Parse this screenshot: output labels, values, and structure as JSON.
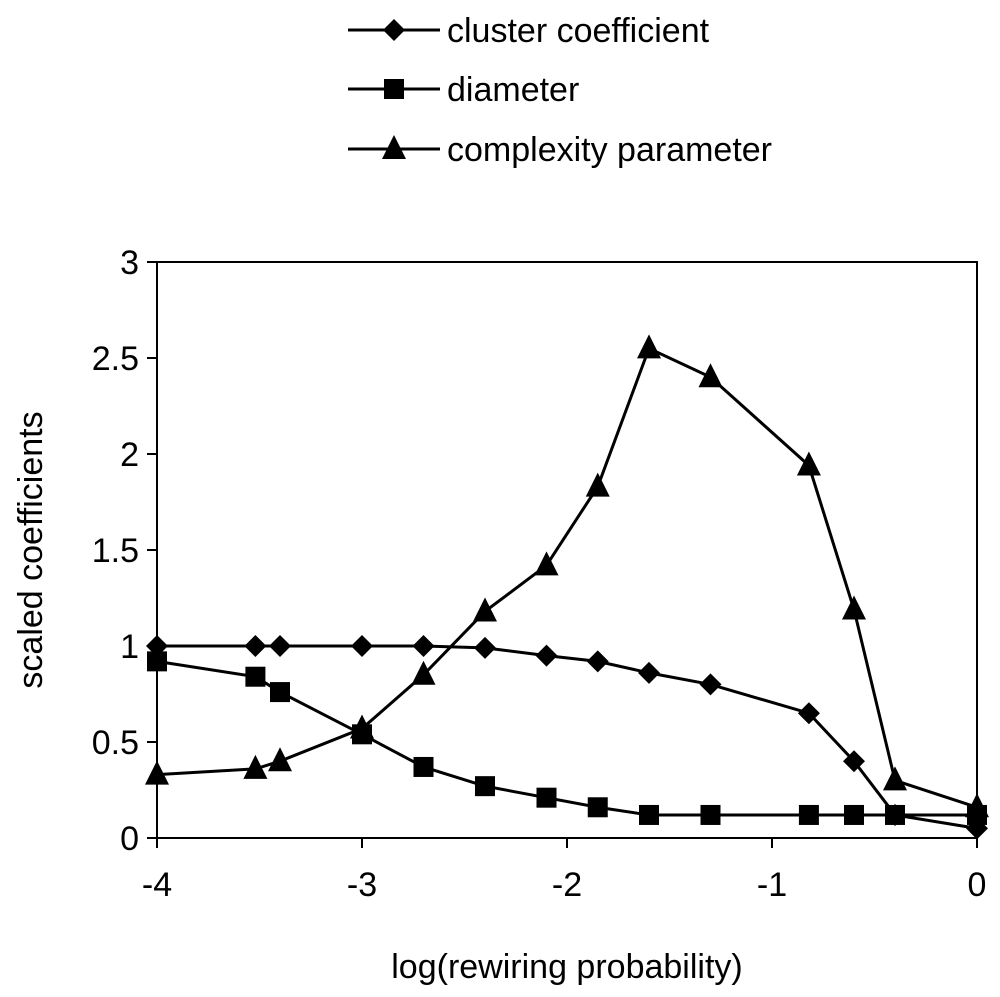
{
  "chart_data": {
    "type": "line",
    "title": "",
    "xlabel": "log(rewiring probability)",
    "ylabel": "scaled coefficients",
    "xlim": [
      -4,
      0
    ],
    "ylim": [
      0,
      3
    ],
    "xticks": [
      -4,
      -3,
      -2,
      -1,
      0
    ],
    "xtick_labels": [
      "-4",
      "-3",
      "-2",
      "-1",
      "0"
    ],
    "yticks": [
      0,
      0.5,
      1,
      1.5,
      2,
      2.5,
      3
    ],
    "ytick_labels": [
      "0",
      "0.5",
      "1",
      "1.5",
      "2",
      "2.5",
      "3"
    ],
    "grid": false,
    "legend_position": "top",
    "series": [
      {
        "name": "cluster coefficient",
        "marker": "diamond",
        "color": "#000000",
        "x": [
          -4,
          -3.52,
          -3.4,
          -3,
          -2.7,
          -2.4,
          -2.1,
          -1.85,
          -1.6,
          -1.3,
          -0.82,
          -0.6,
          -0.4,
          0
        ],
        "y": [
          1.0,
          1.0,
          1.0,
          1.0,
          1.0,
          0.99,
          0.95,
          0.92,
          0.86,
          0.8,
          0.65,
          0.4,
          0.12,
          0.05
        ]
      },
      {
        "name": "diameter",
        "marker": "square",
        "color": "#000000",
        "x": [
          -4,
          -3.52,
          -3.4,
          -3,
          -2.7,
          -2.4,
          -2.1,
          -1.85,
          -1.6,
          -1.3,
          -0.82,
          -0.6,
          -0.4,
          0
        ],
        "y": [
          0.92,
          0.84,
          0.76,
          0.54,
          0.37,
          0.27,
          0.21,
          0.16,
          0.12,
          0.12,
          0.12,
          0.12,
          0.12,
          0.12
        ]
      },
      {
        "name": "complexity parameter",
        "marker": "triangle",
        "color": "#000000",
        "x": [
          -4,
          -3.52,
          -3.4,
          -3,
          -2.7,
          -2.4,
          -2.1,
          -1.85,
          -1.6,
          -1.3,
          -0.82,
          -0.6,
          -0.4,
          0
        ],
        "y": [
          0.33,
          0.36,
          0.4,
          0.57,
          0.85,
          1.18,
          1.42,
          1.83,
          2.55,
          2.4,
          1.94,
          1.19,
          0.3,
          0.16
        ]
      }
    ]
  }
}
